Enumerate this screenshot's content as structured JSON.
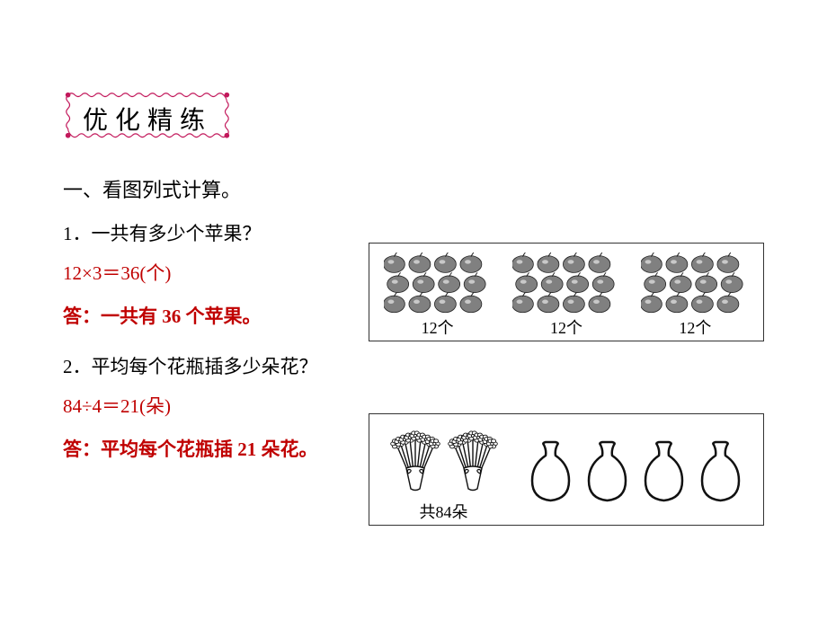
{
  "title_box": {
    "text": "优化精练",
    "text_color": "#000000",
    "border_color": "#c2185b",
    "dot_color": "#c2185b",
    "background": "#ffffff",
    "fontsize": 28
  },
  "section": {
    "heading": "一、看图列式计算。",
    "heading_fontsize": 22
  },
  "q1": {
    "number_text": "1．一共有多少个苹果？",
    "equation": "12×3＝36(个)",
    "answer": "答：一共有 36 个苹果。",
    "groups": [
      {
        "label": "12个"
      },
      {
        "label": "12个"
      },
      {
        "label": "12个"
      }
    ],
    "apple_rows": 3,
    "apple_cols": 4,
    "apple_fill": "#808080",
    "apple_stroke": "#222222"
  },
  "q2": {
    "number_text": "2．平均每个花瓶插多少朵花？",
    "equation": "84÷4＝21(朵)",
    "answer": "答：平均每个花瓶插 21 朵花。",
    "bouquet_label": "共84朵",
    "bouquet_count": 2,
    "vase_count": 4,
    "flower_stroke": "#111111",
    "vase_stroke": "#111111"
  },
  "colors": {
    "red": "#c00000",
    "black": "#000000",
    "background": "#ffffff",
    "border": "#333333"
  }
}
